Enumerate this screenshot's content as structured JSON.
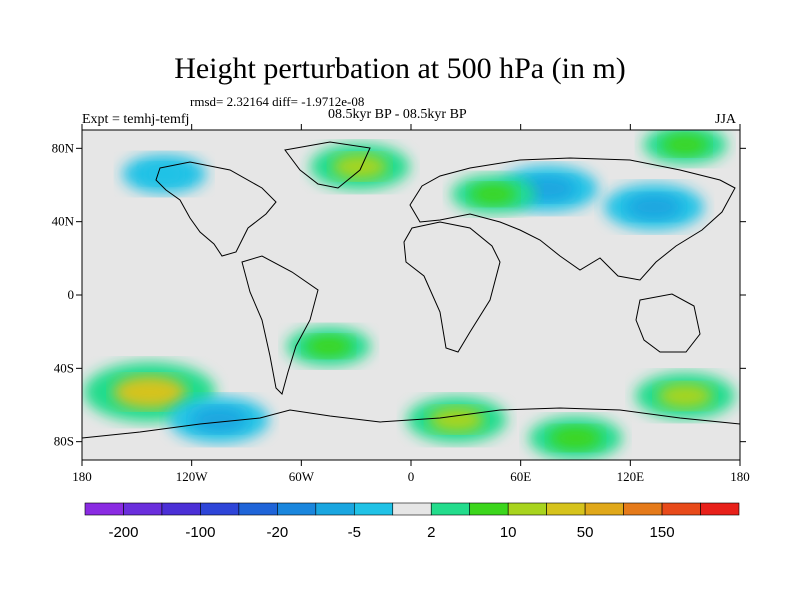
{
  "header": {
    "title": "Height perturbation at 500 hPa (in m)",
    "stats": "rmsd= 2.32164 diff= -1.9712e-08",
    "subtitle": "08.5kyr BP - 08.5kyr BP",
    "left_label": "Expt = temhj-temfj",
    "right_label": "JJA"
  },
  "chart_data": {
    "type": "heatmap",
    "title": "Height perturbation at 500 hPa (in m)",
    "projection": "cylindrical equidistant",
    "xlim": [
      -180,
      180
    ],
    "ylim": [
      -90,
      90
    ],
    "x_ticks": [
      -180,
      -120,
      -60,
      0,
      60,
      120,
      180
    ],
    "x_tick_labels": [
      "180",
      "120W",
      "60W",
      "0",
      "60E",
      "120E",
      "180"
    ],
    "y_ticks": [
      80,
      40,
      0,
      -40,
      -80
    ],
    "y_tick_labels": [
      "80N",
      "40N",
      "0",
      "40S",
      "80S"
    ],
    "colorbar": {
      "levels": [
        -200,
        -150,
        -100,
        -50,
        -20,
        -10,
        -5,
        -2,
        2,
        5,
        10,
        20,
        50,
        100,
        150,
        200
      ],
      "tick_labels": [
        "-200",
        "-100",
        "-20",
        "-5",
        "2",
        "10",
        "50",
        "150"
      ],
      "colors": [
        "#8a2be2",
        "#6a2edc",
        "#4b2fd6",
        "#2e45d8",
        "#1f64d8",
        "#1a86dd",
        "#1aa6e0",
        "#20c2e6",
        "#e6e6e6",
        "#23dc8c",
        "#3cd61c",
        "#a8d41e",
        "#d6c31c",
        "#e0a81a",
        "#e57a1a",
        "#e84a1a",
        "#e8201a"
      ]
    },
    "anomalies": [
      {
        "lon": 150,
        "lat": -55,
        "value": 10
      },
      {
        "lon": -143,
        "lat": -53,
        "value": 20
      },
      {
        "lon": -105,
        "lat": -68,
        "value": -10
      },
      {
        "lon": -28,
        "lat": 70,
        "value": 10
      },
      {
        "lon": 25,
        "lat": -68,
        "value": 10
      },
      {
        "lon": 90,
        "lat": -78,
        "value": 8
      },
      {
        "lon": 75,
        "lat": 58,
        "value": -10
      },
      {
        "lon": 133,
        "lat": 48,
        "value": -10
      },
      {
        "lon": -45,
        "lat": -28,
        "value": 5
      },
      {
        "lon": 45,
        "lat": 55,
        "value": 5
      },
      {
        "lon": 150,
        "lat": 82,
        "value": 5
      },
      {
        "lon": -135,
        "lat": 66,
        "value": -5
      }
    ]
  }
}
